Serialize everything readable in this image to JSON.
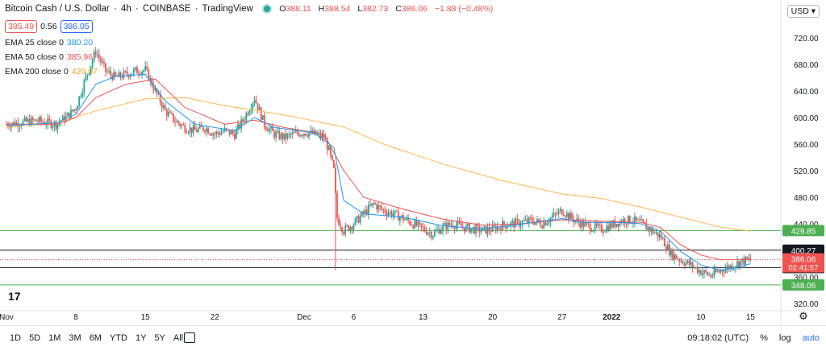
{
  "header": {
    "symbol": "Bitcoin Cash / U.S. Dollar",
    "interval": "4h",
    "exchange": "COINBASE",
    "source": "TradingView",
    "o_label": "O",
    "o": "388.11",
    "h_label": "H",
    "h": "388.54",
    "l_label": "L",
    "l": "382.73",
    "c_label": "C",
    "c": "386.06",
    "change": "−1.88 (−0.48%)"
  },
  "quote": {
    "bid": "385.49",
    "spread": "0.56",
    "ask": "386.05"
  },
  "indicators": [
    {
      "label": "EMA 25 close 0",
      "value": "380.20",
      "color": "#2196f3"
    },
    {
      "label": "EMA 50 close 0",
      "value": "385.96",
      "color": "#ef5350"
    },
    {
      "label": "EMA 200 close 0",
      "value": "429.07",
      "color": "#ffb74d"
    }
  ],
  "currency": "USD",
  "toolbar": {
    "ranges": [
      "1D",
      "5D",
      "1M",
      "3M",
      "6M",
      "YTD",
      "1Y",
      "5Y",
      "All"
    ],
    "time": "09:18:02 (UTC)",
    "percent": "%",
    "log": "log",
    "auto": "auto"
  },
  "chart_data": {
    "type": "candlestick",
    "y_ticks": [
      "720.00",
      "680.00",
      "640.00",
      "600.00",
      "560.00",
      "520.00",
      "480.00",
      "440.00",
      "400.00",
      "360.00",
      "320.00"
    ],
    "y_tick_values": [
      720,
      680,
      640,
      600,
      560,
      520,
      480,
      440,
      400,
      360,
      320
    ],
    "ylim": [
      300,
      760
    ],
    "x_ticks": [
      "Nov",
      "8",
      "15",
      "22",
      "Dec",
      "6",
      "13",
      "20",
      "27",
      "2022",
      "10",
      "15"
    ],
    "x_tick_days": [
      0,
      7,
      14,
      21,
      30,
      35,
      42,
      49,
      56,
      61,
      70,
      75
    ],
    "xlim_days": [
      0,
      77
    ],
    "horizontal_lines": [
      {
        "value": 429.85,
        "label": "429.85",
        "color": "#4caf50"
      },
      {
        "value": 400.27,
        "label": "400.27",
        "color": "#131722"
      },
      {
        "value": 374.16,
        "label": "374.16",
        "color": "#131722"
      },
      {
        "value": 348.06,
        "label": "348.06",
        "color": "#4caf50"
      }
    ],
    "last_price": {
      "value": 386.06,
      "label": "386.06",
      "countdown": "02:41:57",
      "color": "#ef5350"
    },
    "close_path": [
      [
        0,
        590
      ],
      [
        3,
        595
      ],
      [
        5,
        590
      ],
      [
        6,
        600
      ],
      [
        7,
        615
      ],
      [
        8,
        660
      ],
      [
        9,
        700
      ],
      [
        10,
        670
      ],
      [
        11,
        660
      ],
      [
        12,
        665
      ],
      [
        13,
        670
      ],
      [
        14,
        672
      ],
      [
        15,
        640
      ],
      [
        16,
        610
      ],
      [
        17,
        595
      ],
      [
        18,
        585
      ],
      [
        19,
        580
      ],
      [
        20,
        585
      ],
      [
        21,
        575
      ],
      [
        22,
        580
      ],
      [
        23,
        575
      ],
      [
        24,
        600
      ],
      [
        25,
        630
      ],
      [
        26,
        590
      ],
      [
        27,
        575
      ],
      [
        28,
        570
      ],
      [
        29,
        575
      ],
      [
        30,
        578
      ],
      [
        31,
        575
      ],
      [
        32,
        570
      ],
      [
        32.5,
        550
      ],
      [
        33,
        520
      ],
      [
        33.3,
        450
      ],
      [
        34,
        430
      ],
      [
        35,
        440
      ],
      [
        36,
        455
      ],
      [
        37,
        470
      ],
      [
        38,
        460
      ],
      [
        39,
        455
      ],
      [
        40,
        448
      ],
      [
        41,
        440
      ],
      [
        42,
        432
      ],
      [
        43,
        425
      ],
      [
        44,
        435
      ],
      [
        45,
        440
      ],
      [
        46,
        435
      ],
      [
        47,
        432
      ],
      [
        48,
        430
      ],
      [
        49,
        432
      ],
      [
        50,
        438
      ],
      [
        51,
        440
      ],
      [
        52,
        442
      ],
      [
        53,
        445
      ],
      [
        54,
        440
      ],
      [
        55,
        450
      ],
      [
        56,
        460
      ],
      [
        57,
        448
      ],
      [
        58,
        440
      ],
      [
        59,
        435
      ],
      [
        60,
        432
      ],
      [
        61,
        438
      ],
      [
        62,
        445
      ],
      [
        63,
        446
      ],
      [
        64,
        440
      ],
      [
        65,
        430
      ],
      [
        66,
        420
      ],
      [
        67,
        395
      ],
      [
        68,
        385
      ],
      [
        69,
        378
      ],
      [
        70,
        368
      ],
      [
        71,
        362
      ],
      [
        72,
        370
      ],
      [
        73,
        376
      ],
      [
        74,
        383
      ],
      [
        75,
        386
      ]
    ],
    "ema25": [
      [
        0,
        588
      ],
      [
        5,
        592
      ],
      [
        7,
        605
      ],
      [
        9,
        650
      ],
      [
        11,
        662
      ],
      [
        14,
        665
      ],
      [
        16,
        625
      ],
      [
        19,
        590
      ],
      [
        23,
        580
      ],
      [
        25,
        600
      ],
      [
        27,
        585
      ],
      [
        31,
        577
      ],
      [
        33,
        555
      ],
      [
        34,
        475
      ],
      [
        36,
        455
      ],
      [
        40,
        450
      ],
      [
        44,
        437
      ],
      [
        48,
        432
      ],
      [
        52,
        440
      ],
      [
        56,
        448
      ],
      [
        58,
        442
      ],
      [
        62,
        442
      ],
      [
        64,
        440
      ],
      [
        66,
        428
      ],
      [
        68,
        398
      ],
      [
        70,
        378
      ],
      [
        72,
        370
      ],
      [
        74,
        376
      ],
      [
        75,
        380
      ]
    ],
    "ema50": [
      [
        0,
        590
      ],
      [
        5,
        590
      ],
      [
        7,
        600
      ],
      [
        9,
        630
      ],
      [
        12,
        650
      ],
      [
        15,
        658
      ],
      [
        18,
        615
      ],
      [
        22,
        590
      ],
      [
        25,
        596
      ],
      [
        28,
        585
      ],
      [
        32,
        575
      ],
      [
        34,
        520
      ],
      [
        36,
        480
      ],
      [
        40,
        462
      ],
      [
        44,
        447
      ],
      [
        48,
        438
      ],
      [
        52,
        440
      ],
      [
        56,
        446
      ],
      [
        60,
        444
      ],
      [
        64,
        442
      ],
      [
        66,
        434
      ],
      [
        68,
        408
      ],
      [
        70,
        393
      ],
      [
        72,
        386
      ],
      [
        75,
        386
      ]
    ],
    "ema200": [
      [
        0,
        585
      ],
      [
        5,
        592
      ],
      [
        9,
        610
      ],
      [
        14,
        628
      ],
      [
        18,
        630
      ],
      [
        22,
        618
      ],
      [
        28,
        604
      ],
      [
        34,
        586
      ],
      [
        38,
        560
      ],
      [
        44,
        530
      ],
      [
        50,
        505
      ],
      [
        56,
        485
      ],
      [
        60,
        478
      ],
      [
        64,
        465
      ],
      [
        68,
        450
      ],
      [
        72,
        435
      ],
      [
        75,
        429
      ]
    ]
  }
}
